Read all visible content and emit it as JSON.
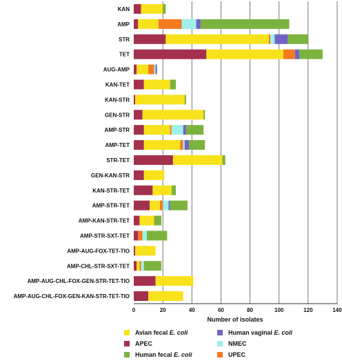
{
  "chart_data": {
    "type": "bar",
    "orientation": "horizontal",
    "stacked": true,
    "xlabel": "Number of isolates",
    "xlim": [
      0,
      140
    ],
    "xticks": [
      0,
      20,
      40,
      60,
      80,
      100,
      120,
      140
    ],
    "grid": "vertical",
    "legend_position": "bottom",
    "categories": [
      "KAN",
      "AMP",
      "STR",
      "TET",
      "AUG-AMP",
      "KAN-TET",
      "KAN-STR",
      "GEN-STR",
      "AMP-STR",
      "AMP-TET",
      "STR-TET",
      "GEN-KAN-STR",
      "KAN-STR-TET",
      "AMP-STR-TET",
      "AMP-KAN-STR-TET",
      "AMP-STR-SXT-TET",
      "AMP-AUG-FOX-TET-TIO",
      "AMP-CHL-STR-SXT-TET",
      "AMP-AUG-CHL-FOX-GEN-STR-TET-TIO",
      "AMP-AUG-CHL-FOX-GEN-KAN-STR-TET-TIO"
    ],
    "series": [
      {
        "key": "apec",
        "color": "#a3314e",
        "values": [
          5,
          3,
          22,
          50,
          2,
          7,
          1,
          6,
          7,
          7,
          27,
          7,
          13,
          11,
          4,
          3,
          1,
          2,
          15,
          10
        ]
      },
      {
        "key": "avian",
        "color": "#f8e21b",
        "values": [
          15,
          14,
          71,
          53,
          8,
          18,
          34,
          42,
          18,
          25,
          34,
          14,
          13,
          7,
          10,
          0,
          14,
          2,
          26,
          24
        ]
      },
      {
        "key": "upec",
        "color": "#f47a20",
        "values": [
          0,
          16,
          1,
          8,
          4,
          0,
          0,
          0,
          1,
          2,
          0,
          0,
          0,
          2,
          0,
          3,
          0,
          1,
          0,
          0
        ]
      },
      {
        "key": "nmec",
        "color": "#9ff0ea",
        "values": [
          0,
          10,
          3,
          0,
          1,
          0,
          0,
          0,
          8,
          1,
          0,
          0,
          0,
          4,
          0,
          3,
          0,
          2,
          0,
          0
        ]
      },
      {
        "key": "vaginal",
        "color": "#6f63c6",
        "values": [
          0,
          3,
          9,
          3,
          1,
          0,
          0,
          0,
          2,
          3,
          0,
          0,
          0,
          1,
          0,
          0,
          0,
          0,
          0,
          0
        ]
      },
      {
        "key": "human_fecal",
        "color": "#7cb33e",
        "values": [
          2,
          61,
          14,
          16,
          0,
          4,
          1,
          1,
          12,
          11,
          2,
          0,
          3,
          12,
          5,
          14,
          0,
          12,
          0,
          0
        ]
      }
    ]
  },
  "legend": [
    {
      "key": "avian",
      "text": "Avian fecal ",
      "italic": "E. coli",
      "color": "#f8e21b"
    },
    {
      "key": "vaginal",
      "text": "Human vaginal ",
      "italic": "E. coli",
      "color": "#6f63c6"
    },
    {
      "key": "apec",
      "text": "APEC",
      "italic": "",
      "color": "#a3314e"
    },
    {
      "key": "nmec",
      "text": "NMEC",
      "italic": "",
      "color": "#9ff0ea"
    },
    {
      "key": "human_fecal",
      "text": "Human fecal ",
      "italic": "E. coli",
      "color": "#7cb33e"
    },
    {
      "key": "upec",
      "text": "UPEC",
      "italic": "",
      "color": "#f47a20"
    }
  ]
}
